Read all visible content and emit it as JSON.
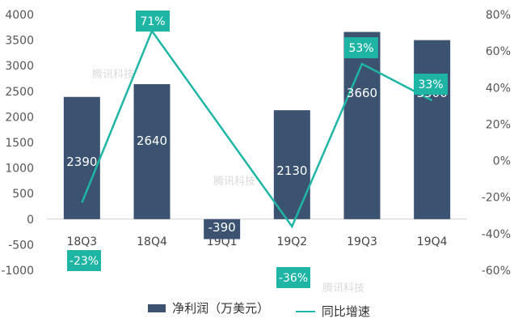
{
  "chart_data": {
    "type": "bar",
    "categories": [
      "18Q3",
      "18Q4",
      "19Q1",
      "19Q2",
      "19Q3",
      "19Q4"
    ],
    "series": [
      {
        "name": "净利润（万美元）",
        "type": "bar",
        "axis": "left",
        "values": [
          2390,
          2640,
          -390,
          2130,
          3660,
          3500
        ],
        "value_labels": [
          "2390",
          "2640",
          "-390",
          "2130",
          "3660",
          "3500"
        ]
      },
      {
        "name": "同比增速",
        "type": "line",
        "axis": "right",
        "values": [
          -23,
          71,
          null,
          -36,
          53,
          33
        ],
        "value_labels": [
          "-23%",
          "71%",
          "",
          "-36%",
          "53%",
          "33%"
        ]
      }
    ],
    "y_left": {
      "ylim": [
        -1000,
        4000
      ],
      "ticks": [
        "-1000",
        "-500",
        "0",
        "500",
        "1000",
        "1500",
        "2000",
        "2500",
        "3000",
        "3500",
        "4000"
      ]
    },
    "y_right": {
      "ylim": [
        -60,
        80
      ],
      "ticks": [
        "-60%",
        "-40%",
        "-20%",
        "0%",
        "20%",
        "40%",
        "60%",
        "80%"
      ]
    },
    "legend_position": "bottom",
    "watermark": "腾讯科技",
    "colors": {
      "bar": "#3b5370",
      "line": "#1fb5a5",
      "bar_label": "#ffffff",
      "line_label_bg": "#1fb5a5"
    }
  }
}
